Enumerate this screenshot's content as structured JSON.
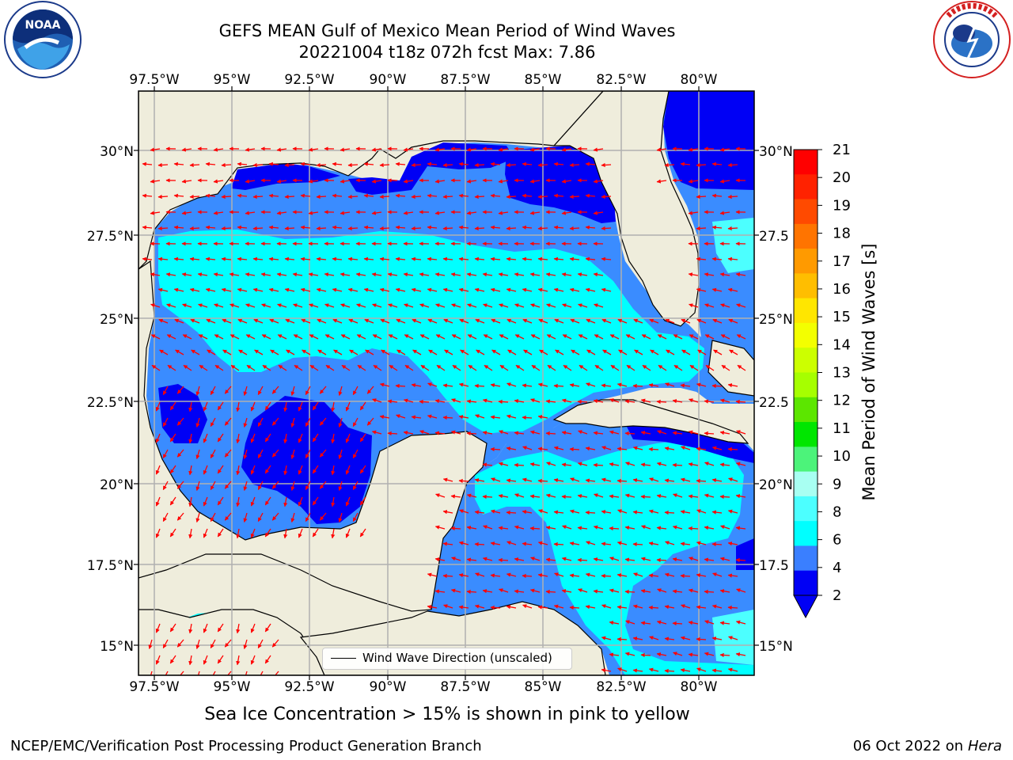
{
  "title": {
    "line1": "GEFS MEAN Gulf of Mexico Mean Period of Wind Waves",
    "line2": "20221004 t18z 072h fcst   Max: 7.86"
  },
  "logos": {
    "left": "noaa-logo",
    "left_text": "NOAA",
    "left_ring_text": "NATIONAL OCEANIC AND ATMOSPHERIC ADMINISTRATION · U.S. DEPARTMENT OF COMMERCE",
    "right": "nws-logo",
    "right_ring_text": "NATIONAL WEATHER SERVICE"
  },
  "map": {
    "lon_ticks": [
      "97.5°W",
      "95°W",
      "92.5°W",
      "90°W",
      "87.5°W",
      "85°W",
      "82.5°W",
      "80°W"
    ],
    "lat_ticks_left": [
      "30°N",
      "27.5°N",
      "25°N",
      "22.5°N",
      "20°N",
      "17.5°N",
      "15°N"
    ],
    "lat_ticks_right": [
      "30°N",
      "27.5",
      "25°N",
      "22.5",
      "20°N",
      "17.5",
      "15°N"
    ],
    "legend_label": "Wind Wave Direction (unscaled)",
    "colors": {
      "land": "#efeddc",
      "period_2_4": "#0000f5",
      "period_4_6": "#3a8cff",
      "period_6_8": "#00ffff",
      "arrows": "#ff0000"
    }
  },
  "colorbar": {
    "title": "Mean Period of Wind Waves [s]",
    "ticks": [
      "21",
      "20",
      "19",
      "18",
      "17",
      "16",
      "15",
      "14",
      "13",
      "12",
      "11",
      "10",
      "9",
      "8",
      "6",
      "4",
      "2"
    ],
    "colors": [
      "#ff0000",
      "#ff2200",
      "#ff4a00",
      "#ff7400",
      "#ff9a00",
      "#ffbe00",
      "#ffe600",
      "#f3ff00",
      "#ccff00",
      "#a6ff00",
      "#5ce600",
      "#00e600",
      "#4cf37a",
      "#a8fff2",
      "#4cffff",
      "#00ffff",
      "#3a7fff",
      "#0000f5"
    ]
  },
  "note": "Sea Ice Concentration > 15% is shown in pink to yellow",
  "footer": {
    "left": "NCEP/EMC/Verification Post Processing Product Generation Branch",
    "right_date": "06 Oct 2022 on",
    "right_host": "Hera"
  }
}
